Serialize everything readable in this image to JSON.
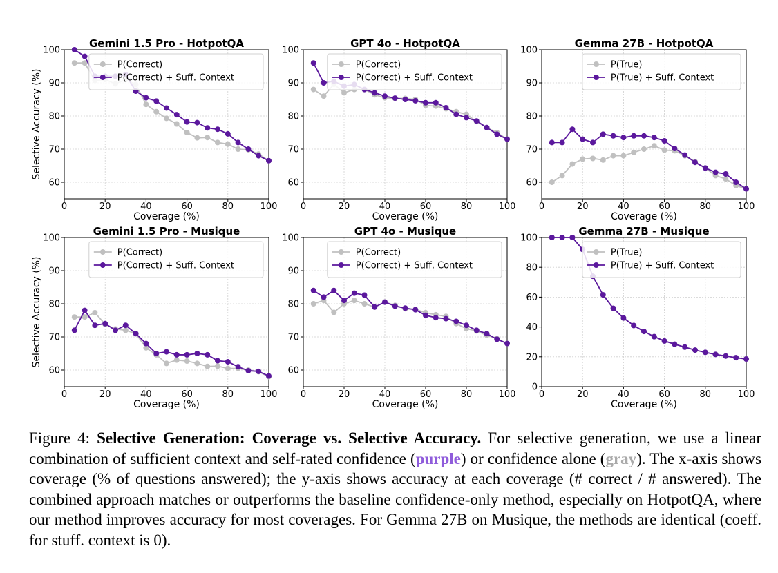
{
  "chart_data": [
    {
      "type": "line",
      "title": "Gemini 1.5 Pro - HotpotQA",
      "xlabel": "Coverage (%)",
      "ylabel": "Selective Accuracy (%)",
      "xlim": [
        0,
        100
      ],
      "ylim": [
        55,
        100
      ],
      "xticks": [
        0,
        20,
        40,
        60,
        80,
        100
      ],
      "yticks": [
        60,
        70,
        80,
        90,
        100
      ],
      "grid": true,
      "legend": "top-right",
      "x": [
        5,
        10,
        15,
        20,
        25,
        30,
        35,
        40,
        45,
        50,
        55,
        60,
        65,
        70,
        75,
        80,
        85,
        90,
        95,
        100
      ],
      "series": [
        {
          "name": "P(Correct)",
          "color": "#c0c0c0",
          "values": [
            96,
            96,
            90.7,
            91,
            89.7,
            91,
            89.5,
            83.5,
            81.3,
            79.3,
            77.6,
            75,
            73.4,
            73.5,
            72,
            71.5,
            70,
            69.8,
            68.5,
            66.5
          ]
        },
        {
          "name": "P(Correct) + Suff. Context",
          "color": "#5b189d",
          "values": [
            100,
            98,
            92,
            92,
            92,
            92.5,
            87.5,
            85.5,
            84.5,
            82.4,
            80.4,
            78.2,
            78,
            76.4,
            76,
            74.6,
            72,
            70,
            68,
            66.5
          ]
        }
      ]
    },
    {
      "type": "line",
      "title": "GPT 4o - HotpotQA",
      "xlabel": "Coverage (%)",
      "ylabel": "",
      "xlim": [
        0,
        100
      ],
      "ylim": [
        55,
        100
      ],
      "xticks": [
        0,
        20,
        40,
        60,
        80,
        100
      ],
      "yticks": [
        60,
        70,
        80,
        90,
        100
      ],
      "grid": true,
      "legend": "top-right",
      "x": [
        5,
        10,
        15,
        20,
        25,
        30,
        35,
        40,
        45,
        50,
        55,
        60,
        65,
        70,
        75,
        80,
        85,
        90,
        95,
        100
      ],
      "series": [
        {
          "name": "P(Correct)",
          "color": "#c0c0c0",
          "values": [
            88,
            86,
            89.6,
            87,
            88,
            88,
            86.4,
            85.5,
            85.3,
            85.3,
            85,
            83.2,
            83,
            82.2,
            81.3,
            80.5,
            78.3,
            76.5,
            75,
            73
          ]
        },
        {
          "name": "P(Correct) + Suff. Context",
          "color": "#5b189d",
          "values": [
            96,
            90,
            90.5,
            89,
            89.5,
            88,
            87,
            86,
            85.4,
            85,
            84.6,
            84,
            84,
            82.5,
            80.5,
            79.5,
            78.5,
            76.5,
            74.5,
            73
          ]
        }
      ]
    },
    {
      "type": "line",
      "title": "Gemma 27B - HotpotQA",
      "xlabel": "Coverage (%)",
      "ylabel": "",
      "xlim": [
        0,
        100
      ],
      "ylim": [
        55,
        100
      ],
      "xticks": [
        0,
        20,
        40,
        60,
        80,
        100
      ],
      "yticks": [
        60,
        70,
        80,
        90,
        100
      ],
      "grid": true,
      "legend": "top-right",
      "x": [
        5,
        10,
        15,
        20,
        25,
        30,
        35,
        40,
        45,
        50,
        55,
        60,
        65,
        70,
        75,
        80,
        85,
        90,
        95,
        100
      ],
      "series": [
        {
          "name": "P(True)",
          "color": "#c0c0c0",
          "values": [
            60,
            62,
            65.5,
            67,
            67.2,
            66.7,
            68,
            68,
            69,
            70,
            71,
            69.7,
            69.5,
            68,
            66.2,
            64.3,
            62,
            61,
            59,
            58
          ]
        },
        {
          "name": "P(True) + Suff. Context",
          "color": "#5b189d",
          "values": [
            72,
            72,
            76,
            73,
            72,
            74.5,
            74,
            73.5,
            74,
            74,
            73.5,
            72.5,
            70.2,
            68.2,
            66,
            64.3,
            63,
            62.5,
            60,
            58
          ]
        }
      ]
    },
    {
      "type": "line",
      "title": "Gemini 1.5 Pro - Musique",
      "xlabel": "Coverage (%)",
      "ylabel": "Selective Accuracy (%)",
      "xlim": [
        0,
        100
      ],
      "ylim": [
        55,
        100
      ],
      "xticks": [
        0,
        20,
        40,
        60,
        80,
        100
      ],
      "yticks": [
        60,
        70,
        80,
        90,
        100
      ],
      "grid": true,
      "legend": "top-right",
      "x": [
        5,
        10,
        15,
        20,
        25,
        30,
        35,
        40,
        45,
        50,
        55,
        60,
        65,
        70,
        75,
        80,
        85,
        90,
        95,
        100
      ],
      "series": [
        {
          "name": "P(Correct)",
          "color": "#c0c0c0",
          "values": [
            76,
            76,
            77.3,
            73.8,
            72.4,
            72,
            71,
            66.7,
            64.6,
            62,
            63,
            62.7,
            62,
            61.1,
            61.2,
            60.5,
            60.5,
            60,
            59.5,
            58
          ]
        },
        {
          "name": "P(Correct) + Suff. Context",
          "color": "#5b189d",
          "values": [
            72,
            78,
            73.5,
            74,
            72,
            73.5,
            71,
            68,
            65,
            65.5,
            64.6,
            64.6,
            65,
            64.6,
            62.8,
            62.5,
            61,
            59.8,
            59.6,
            58.2
          ]
        }
      ]
    },
    {
      "type": "line",
      "title": "GPT 4o - Musique",
      "xlabel": "Coverage (%)",
      "ylabel": "",
      "xlim": [
        0,
        100
      ],
      "ylim": [
        55,
        100
      ],
      "xticks": [
        0,
        20,
        40,
        60,
        80,
        100
      ],
      "yticks": [
        60,
        70,
        80,
        90,
        100
      ],
      "grid": true,
      "legend": "top-right",
      "x": [
        5,
        10,
        15,
        20,
        25,
        30,
        35,
        40,
        45,
        50,
        55,
        60,
        65,
        70,
        75,
        80,
        85,
        90,
        95,
        100
      ],
      "series": [
        {
          "name": "P(Correct)",
          "color": "#c0c0c0",
          "values": [
            80,
            81,
            77.4,
            80,
            81,
            80,
            79,
            80.5,
            79.5,
            78.5,
            78.3,
            77.3,
            76.7,
            76.2,
            74,
            72.5,
            71.8,
            70.5,
            69.5,
            68
          ]
        },
        {
          "name": "P(Correct) + Suff. Context",
          "color": "#5b189d",
          "values": [
            84,
            82,
            84,
            81,
            83.2,
            82.6,
            79,
            80.5,
            79.3,
            78.7,
            78.2,
            76.5,
            75.8,
            75.5,
            74.7,
            73.5,
            72,
            71,
            69.3,
            68
          ]
        }
      ]
    },
    {
      "type": "line",
      "title": "Gemma 27B - Musique",
      "xlabel": "Coverage (%)",
      "ylabel": "",
      "xlim": [
        0,
        100
      ],
      "ylim": [
        0,
        100
      ],
      "xticks": [
        0,
        20,
        40,
        60,
        80,
        100
      ],
      "yticks": [
        0,
        20,
        40,
        60,
        80,
        100
      ],
      "grid": true,
      "legend": "top-right",
      "x": [
        5,
        10,
        15,
        20,
        25,
        30,
        35,
        40,
        45,
        50,
        55,
        60,
        65,
        70,
        75,
        80,
        85,
        90,
        95,
        100
      ],
      "series": [
        {
          "name": "P(True)",
          "color": "#c0c0c0",
          "values": [
            100,
            100,
            100,
            92,
            74,
            61.5,
            52.5,
            46,
            41,
            37,
            33.5,
            30.6,
            28.4,
            26.5,
            24.5,
            23,
            21.6,
            20.5,
            19.4,
            18.5
          ]
        },
        {
          "name": "P(True) + Suff. Context",
          "color": "#5b189d",
          "values": [
            100,
            100,
            100,
            92,
            74,
            61.5,
            52.5,
            46,
            41,
            37,
            33.5,
            30.6,
            28.4,
            26.5,
            24.5,
            23,
            21.6,
            20.5,
            19.4,
            18.5
          ]
        }
      ]
    }
  ],
  "caption": {
    "label": "Figure 4:",
    "title": "Selective Generation: Coverage vs. Selective Accuracy.",
    "text_1": "For selective generation, we use a linear combination of sufficient context and self-rated confidence (",
    "purple_word": "purple",
    "text_2": ") or confidence alone (",
    "gray_word": "gray",
    "text_3": "). The x-axis shows coverage (% of questions answered); the y-axis shows accuracy at each coverage (# correct / # answered). The combined approach matches or outperforms the baseline confidence-only method, especially on HotpotQA, where our method improves accuracy for most coverages. For Gemma 27B on Musique, the methods are identical (coeff. for stuff. context is 0)."
  }
}
